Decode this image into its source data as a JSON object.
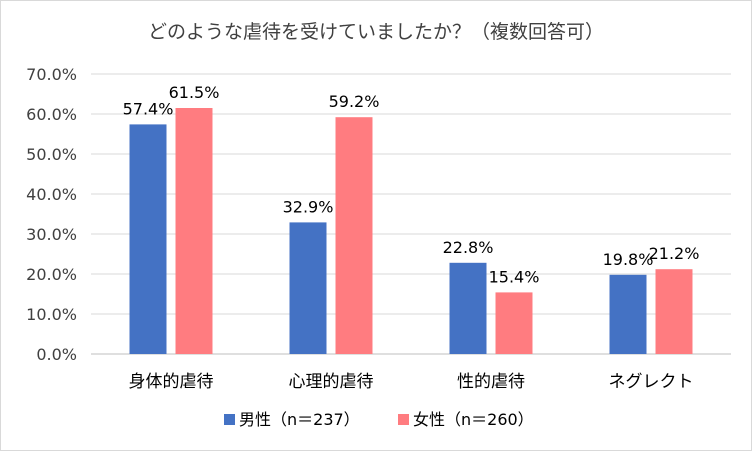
{
  "chart_data": {
    "type": "bar",
    "title": "どのような虐待を受けていましたか？（複数回答可）",
    "categories": [
      "身体的虐待",
      "心理的虐待",
      "性的虐待",
      "ネグレクト"
    ],
    "series": [
      {
        "name": "男性（n＝237）",
        "values": [
          57.4,
          32.9,
          22.8,
          19.8
        ],
        "labels": [
          "57.4%",
          "32.9%",
          "22.8%",
          "19.8%"
        ],
        "color": "#4472c4"
      },
      {
        "name": "女性（n＝260）",
        "values": [
          61.5,
          59.2,
          15.4,
          21.2
        ],
        "labels": [
          "61.5%",
          "59.2%",
          "15.4%",
          "21.2%"
        ],
        "color": "#ff7c80"
      }
    ],
    "ylim": [
      0,
      70
    ],
    "yticks": [
      "0.0%",
      "10.0%",
      "20.0%",
      "30.0%",
      "40.0%",
      "50.0%",
      "60.0%",
      "70.0%"
    ],
    "grid": true,
    "legend_position": "bottom"
  }
}
